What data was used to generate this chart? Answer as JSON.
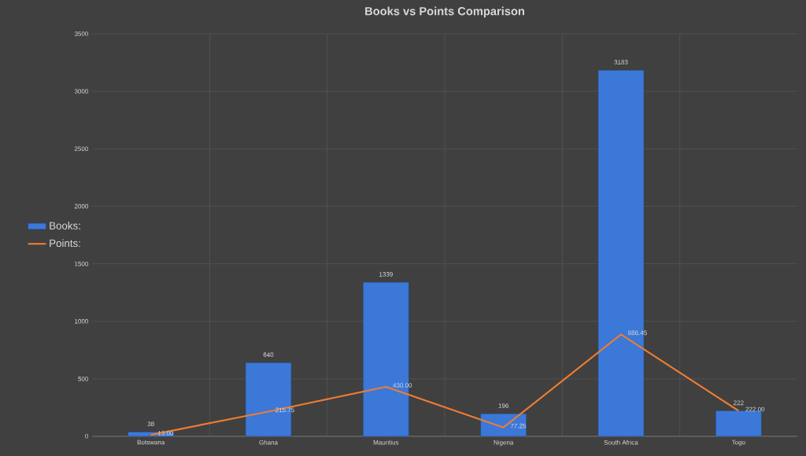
{
  "chart_data": {
    "type": "bar",
    "title": "Books vs Points Comparison",
    "categories": [
      "Botswana",
      "Ghana",
      "Mauritius",
      "Nigeria",
      "South Africa",
      "Togo"
    ],
    "series": [
      {
        "name": "Books:",
        "color": "#3c78d8",
        "values": [
          38,
          640,
          1339,
          196,
          3183,
          222
        ],
        "value_labels": [
          "38",
          "640",
          "1339",
          "196",
          "3183",
          "222"
        ]
      },
      {
        "name": "Points:",
        "type": "line",
        "color": "#ed7d31",
        "values": [
          13.0,
          215.75,
          430.0,
          77.25,
          886.45,
          222.0
        ],
        "value_labels": [
          "13.00",
          "215.75",
          "430.00",
          "77.25",
          "886.45",
          "222.00"
        ]
      }
    ],
    "ylim": [
      0,
      3500
    ],
    "yticks": [
      0,
      500,
      1000,
      1500,
      2000,
      2500,
      3000,
      3500
    ],
    "grid": true,
    "legend": "left",
    "marker": "none",
    "line_style": "solid"
  }
}
